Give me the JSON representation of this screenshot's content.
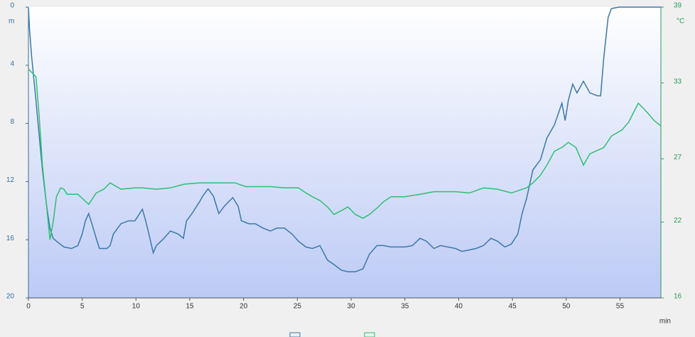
{
  "chart_data": {
    "type": "line",
    "y_label": "m",
    "y2_label": "°C",
    "x_label": "min",
    "xlim": [
      0,
      58.8
    ],
    "xticks": [
      0,
      5,
      10,
      15,
      20,
      25,
      30,
      35,
      40,
      45,
      50,
      55
    ],
    "ylim": [
      0,
      20
    ],
    "y_inverted": true,
    "yticks": [
      0,
      4,
      8,
      12,
      16,
      20
    ],
    "y2lim": [
      16,
      39
    ],
    "y2ticks": [
      16,
      22,
      27,
      33,
      39
    ],
    "series": [
      {
        "color": "#3b78a8",
        "x": [
          0,
          0.1,
          0.3,
          0.7,
          1.0,
          1.3,
          1.7,
          2.0,
          2.3,
          2.6,
          3.3,
          4.0,
          4.6,
          5.0,
          5.3,
          5.6,
          5.9,
          6.3,
          6.6,
          7.3,
          7.6,
          7.9,
          8.6,
          9.3,
          9.9,
          10.6,
          10.9,
          11.2,
          11.6,
          11.9,
          12.6,
          13.2,
          13.9,
          14.4,
          14.7,
          15.2,
          15.9,
          16.2,
          16.7,
          17.2,
          17.7,
          18.2,
          18.6,
          19.0,
          19.5,
          19.8,
          20.5,
          21.1,
          21.8,
          22.5,
          23.1,
          23.8,
          24.5,
          25.1,
          25.8,
          26.4,
          27.1,
          27.8,
          28.4,
          29.1,
          29.7,
          30.4,
          31.1,
          31.7,
          32.4,
          33.0,
          33.7,
          34.4,
          35.0,
          35.7,
          36.4,
          37.0,
          37.7,
          38.3,
          39.0,
          39.7,
          40.3,
          41.0,
          41.6,
          42.3,
          43.0,
          43.6,
          44.3,
          44.9,
          45.5,
          45.9,
          46.3,
          46.9,
          47.6,
          48.2,
          48.9,
          49.6,
          49.9,
          50.2,
          50.6,
          51.0,
          51.6,
          52.2,
          52.9,
          53.2,
          53.5,
          53.9,
          54.2,
          54.9,
          56.8,
          58.8
        ],
        "values": [
          0,
          1.5,
          3.4,
          6.4,
          8.8,
          11.2,
          13.7,
          15.2,
          15.9,
          16.1,
          16.5,
          16.6,
          16.4,
          15.6,
          14.7,
          14.2,
          14.9,
          15.9,
          16.6,
          16.6,
          16.4,
          15.6,
          14.9,
          14.7,
          14.7,
          13.9,
          14.7,
          15.6,
          16.9,
          16.4,
          15.9,
          15.4,
          15.6,
          15.9,
          14.7,
          14.2,
          13.4,
          13.0,
          12.5,
          13.0,
          14.2,
          13.7,
          13.4,
          13.1,
          13.7,
          14.7,
          14.9,
          14.9,
          15.2,
          15.4,
          15.2,
          15.2,
          15.6,
          16.1,
          16.5,
          16.6,
          16.4,
          17.4,
          17.7,
          18.1,
          18.2,
          18.2,
          18.0,
          17.0,
          16.4,
          16.4,
          16.5,
          16.5,
          16.5,
          16.4,
          15.9,
          16.1,
          16.6,
          16.4,
          16.5,
          16.6,
          16.8,
          16.7,
          16.6,
          16.4,
          15.9,
          16.1,
          16.5,
          16.3,
          15.6,
          14.2,
          13.2,
          11.2,
          10.5,
          9.0,
          8.1,
          6.6,
          7.8,
          6.4,
          5.3,
          5.9,
          5.1,
          5.9,
          6.1,
          6.1,
          3.4,
          0.7,
          0.1,
          0,
          0,
          0
        ]
      },
      {
        "color": "#2fbf71",
        "axis": "y2",
        "x": [
          0,
          0.7,
          1.0,
          1.3,
          1.7,
          2.0,
          2.3,
          2.6,
          3.0,
          3.3,
          3.6,
          4.6,
          5.6,
          6.3,
          7.0,
          7.6,
          8.6,
          9.9,
          10.6,
          11.9,
          13.2,
          14.5,
          15.9,
          17.2,
          19.2,
          20.2,
          22.5,
          23.8,
          25.1,
          25.8,
          26.4,
          27.1,
          27.8,
          28.4,
          29.1,
          29.7,
          30.4,
          31.1,
          31.7,
          32.4,
          33.0,
          33.7,
          35.0,
          36.4,
          37.7,
          39.7,
          41.0,
          42.3,
          43.6,
          44.9,
          46.3,
          46.9,
          47.6,
          48.2,
          48.9,
          49.6,
          50.2,
          50.9,
          51.6,
          52.2,
          53.5,
          54.2,
          55.2,
          55.8,
          56.7,
          57.5,
          58.2,
          58.8
        ],
        "values": [
          34.1,
          33.5,
          30.4,
          26.5,
          23.2,
          20.6,
          22.0,
          24.0,
          24.7,
          24.6,
          24.2,
          24.2,
          23.4,
          24.3,
          24.6,
          25.1,
          24.6,
          24.7,
          24.7,
          24.6,
          24.7,
          25.0,
          25.1,
          25.1,
          25.1,
          24.8,
          24.8,
          24.7,
          24.7,
          24.3,
          24.0,
          23.7,
          23.2,
          22.6,
          22.9,
          23.2,
          22.6,
          22.3,
          22.6,
          23.1,
          23.6,
          24.0,
          24.0,
          24.2,
          24.4,
          24.4,
          24.3,
          24.7,
          24.6,
          24.3,
          24.7,
          25.1,
          25.7,
          26.5,
          27.6,
          27.9,
          28.3,
          27.9,
          26.5,
          27.4,
          27.9,
          28.8,
          29.3,
          29.9,
          31.4,
          30.7,
          30.0,
          29.6
        ]
      }
    ]
  }
}
